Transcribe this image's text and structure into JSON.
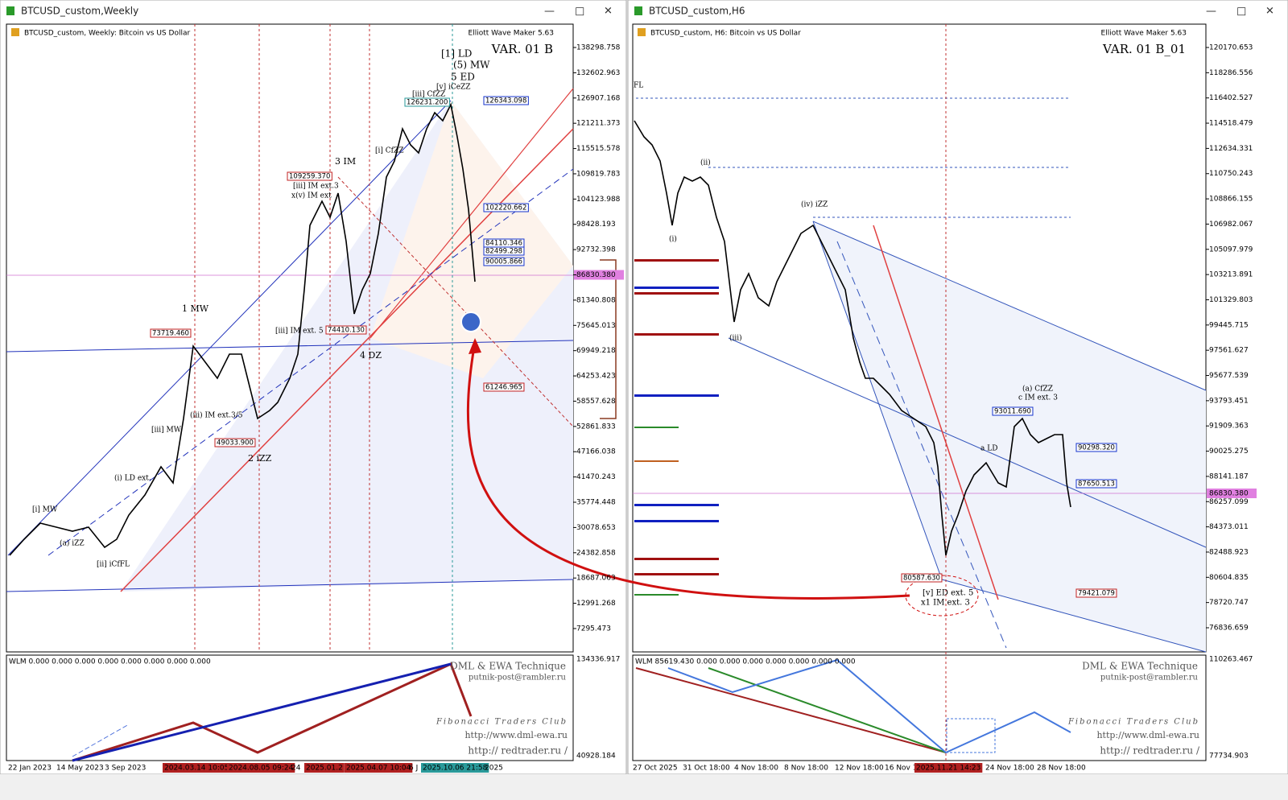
{
  "windows": [
    {
      "title": "BTCUSD_custom,Weekly",
      "header": "BTCUSD_custom, Weekly:  Bitcoin vs US Dollar",
      "tool": "Elliott Wave Maker 5.63",
      "variant": "VAR. 01 B",
      "price_axis": [
        "138298.758",
        "132602.963",
        "126907.168",
        "121211.373",
        "115515.578",
        "109819.783",
        "104123.988",
        "98428.193",
        "92732.398",
        "86830.380",
        "81340.808",
        "75645.013",
        "69949.218",
        "64253.423",
        "58557.628",
        "52861.833",
        "47166.038",
        "41470.243",
        "35774.448",
        "30078.653",
        "24382.858",
        "18687.063",
        "12991.268",
        "7295.473"
      ],
      "current_index": 9,
      "indicator_label": "WLM 0.000 0.000 0.000 0.000 0.000 0.000 0.000 0.000",
      "indicator_axis": [
        "134336.917",
        "40928.184"
      ],
      "dates": [
        "22 Jan 2023",
        "14 May 2023",
        "3 Sep 2023",
        "2024.03.14 10:05",
        "2024.08.05 09:24",
        "24",
        "2025.01.2",
        "2025.04.07 10:04",
        "6 J",
        "2025.10.06 21:58",
        "2025"
      ],
      "labels": [
        "[1] LD",
        "(5) MW",
        "5 ED",
        "[v] iCeZZ",
        "3 IM",
        "[iii] IM ext.3",
        "x(v) IM ext",
        "1 MW",
        "4 DZ",
        "2 iZZ",
        "[i] CfZZ",
        "[iii] CfZZ",
        "[iii] IM ext. 5",
        "(iii) IM ext.3/5",
        "[i] MW",
        "(i) LD ext.",
        "[ii] iCfFL",
        "(a) iZZ",
        "[iii] MW"
      ],
      "price_boxes": [
        "126231.200",
        "126343.098",
        "102220.662",
        "84110.346",
        "82499.298",
        "90005.866",
        "109259.370",
        "73719.460",
        "74410.130",
        "49033.900",
        "61246.965"
      ],
      "watermark": [
        "DML & EWA Technique",
        "putnik-post@rambler.ru",
        "Fibonacci Traders Club",
        "http://www.dml-ewa.ru",
        "http:// redtrader.ru /"
      ]
    },
    {
      "title": "BTCUSD_custom,H6",
      "header": "BTCUSD_custom, H6:  Bitcoin vs US Dollar",
      "tool": "Elliott Wave Maker 5.63",
      "variant": "VAR. 01 B_01",
      "price_axis": [
        "120170.653",
        "118286.556",
        "116402.527",
        "114518.479",
        "112634.331",
        "110750.243",
        "108866.155",
        "106982.067",
        "105097.979",
        "103213.891",
        "101329.803",
        "99445.715",
        "97561.627",
        "95677.539",
        "93793.451",
        "91909.363",
        "90025.275",
        "88141.187",
        "86257.099",
        "84373.011",
        "82488.923",
        "80604.835",
        "78720.747",
        "76836.659"
      ],
      "current": "86830.380",
      "indicator_label": "WLM 85619.430 0.000 0.000 0.000 0.000 0.000 0.000 0.000",
      "indicator_axis": [
        "110263.467",
        "77734.903"
      ],
      "dates": [
        "27 Oct 2025",
        "31 Oct 18:00",
        "4 Nov 18:00",
        "8 Nov 18:00",
        "12 Nov 18:00",
        "16 Nov 1",
        "2025.11.21 14:23",
        "24 Nov 18:00",
        "28 Nov 18:00"
      ],
      "labels": [
        "(iv) iZZ",
        "(ii)",
        "(i)",
        "(iii)",
        "FL",
        "(a) CfZZ",
        "c IM ext. 3",
        "a LD",
        "[v] ED ext. 5",
        "x1 IM ext. 3"
      ],
      "price_boxes": [
        "93011.690",
        "90298.320",
        "87650.513",
        "79421.079",
        "80587.630"
      ],
      "watermark": [
        "DML & EWA Technique",
        "putnik-post@rambler.ru",
        "Fibonacci Traders Club",
        "http://www.dml-ewa.ru",
        "http:// redtrader.ru /"
      ]
    }
  ]
}
